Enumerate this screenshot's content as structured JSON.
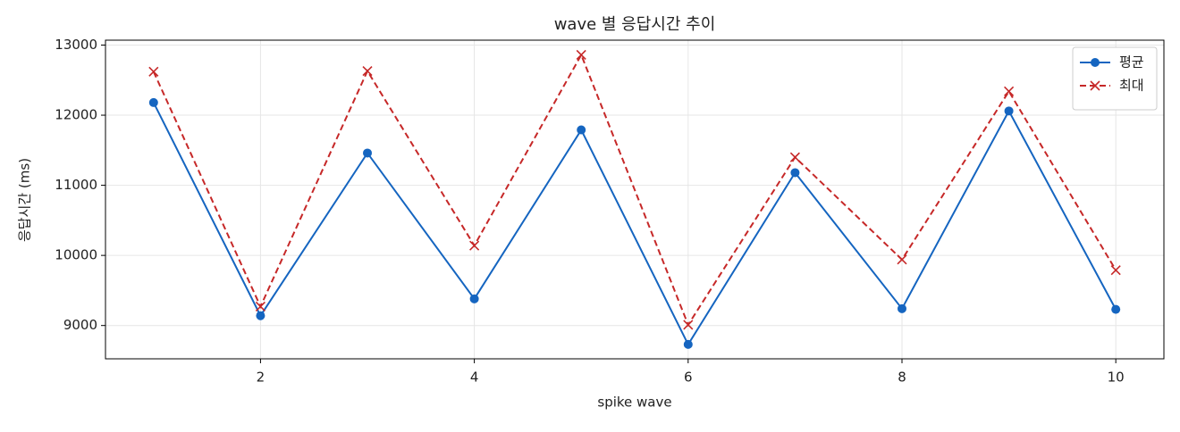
{
  "chart_data": {
    "type": "line",
    "title": "wave 별 응답시간 추이",
    "xlabel": "spike wave",
    "ylabel": "응답시간 (ms)",
    "x": [
      1,
      2,
      3,
      4,
      5,
      6,
      7,
      8,
      9,
      10
    ],
    "series": [
      {
        "name": "평균",
        "color": "#1565c0",
        "marker": "o",
        "linestyle": "solid",
        "values": [
          12180,
          9140,
          11460,
          9380,
          11790,
          8730,
          11180,
          9240,
          12060,
          9230
        ]
      },
      {
        "name": "최대",
        "color": "#c62828",
        "marker": "x",
        "linestyle": "dashed",
        "values": [
          12620,
          9270,
          12630,
          10140,
          12860,
          9010,
          11400,
          9940,
          12340,
          9790
        ]
      }
    ],
    "xlim": [
      0.55,
      10.45
    ],
    "ylim": [
      8525,
      13070
    ],
    "xticks": [
      2,
      4,
      6,
      8,
      10
    ],
    "yticks": [
      9000,
      10000,
      11000,
      12000,
      13000
    ],
    "grid": true,
    "legend": "upper right"
  }
}
